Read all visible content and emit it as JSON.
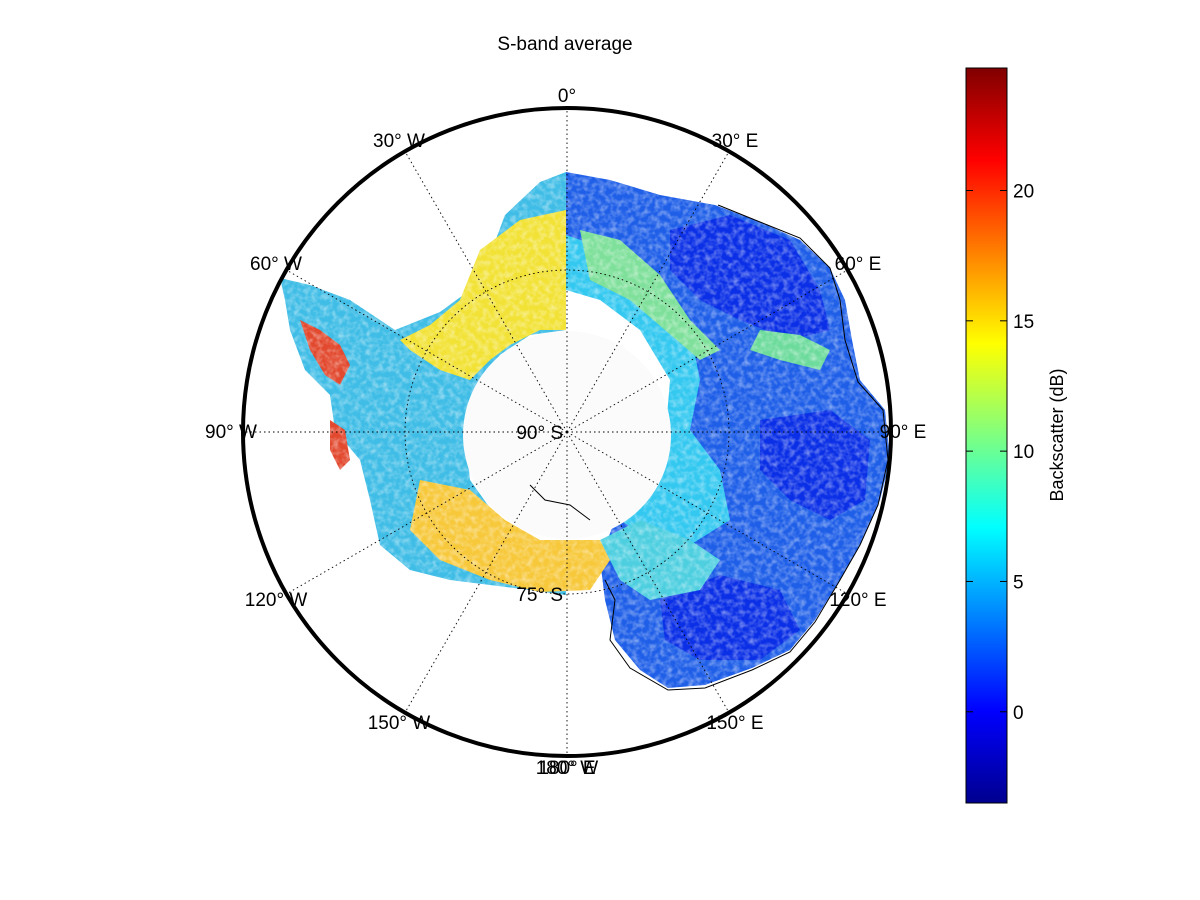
{
  "figure": {
    "title": "S-band average"
  },
  "map": {
    "projection": "south polar stereographic",
    "lat_limit": -60,
    "grid_line_style": "dotted",
    "pole_data_gap": "white disc around the South Pole",
    "latitude_labels": [
      {
        "lat": -90,
        "text": "90° S"
      },
      {
        "lat": -75,
        "text": "75° S"
      }
    ],
    "longitude_labels": [
      {
        "lon": 0,
        "text": "0°"
      },
      {
        "lon": 30,
        "text": "30° E"
      },
      {
        "lon": 60,
        "text": "60° E"
      },
      {
        "lon": 90,
        "text": "90° E"
      },
      {
        "lon": 120,
        "text": "120° E"
      },
      {
        "lon": 150,
        "text": "150° E"
      },
      {
        "lon": 180,
        "text": "180° E"
      },
      {
        "lon": -180,
        "text": "180° W"
      },
      {
        "lon": -150,
        "text": "150° W"
      },
      {
        "lon": -120,
        "text": "120° W"
      },
      {
        "lon": -90,
        "text": "90° W"
      },
      {
        "lon": -60,
        "text": "60° W"
      },
      {
        "lon": -30,
        "text": "30° W"
      }
    ]
  },
  "colorbar": {
    "label": "Backscatter (dB)",
    "colormap": "jet",
    "range": [
      -3.5,
      24.7
    ],
    "ticks": [
      {
        "value": 0,
        "text": "0"
      },
      {
        "value": 5,
        "text": "5"
      },
      {
        "value": 10,
        "text": "10"
      },
      {
        "value": 15,
        "text": "15"
      },
      {
        "value": 20,
        "text": "20"
      }
    ]
  }
}
